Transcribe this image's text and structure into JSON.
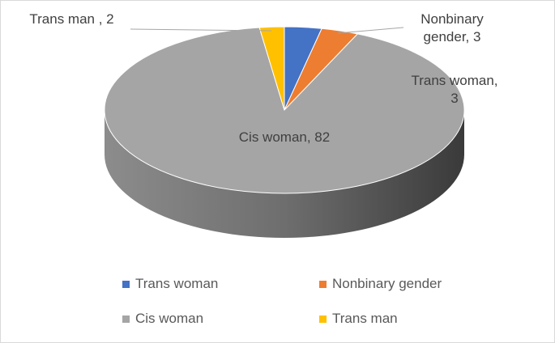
{
  "chart_data": {
    "type": "pie3d",
    "categories": [
      "Trans woman",
      "Nonbinary gender",
      "Cis woman",
      "Trans man"
    ],
    "values": [
      3,
      3,
      82,
      2
    ],
    "value_labels": [
      "Trans woman, 3",
      "Nonbinary gender, 3",
      "Cis woman, 82",
      "Trans man , 2"
    ],
    "colors": [
      "#4472c4",
      "#ed7d31",
      "#a5a5a5",
      "#ffc000"
    ],
    "legend": "bottom"
  }
}
